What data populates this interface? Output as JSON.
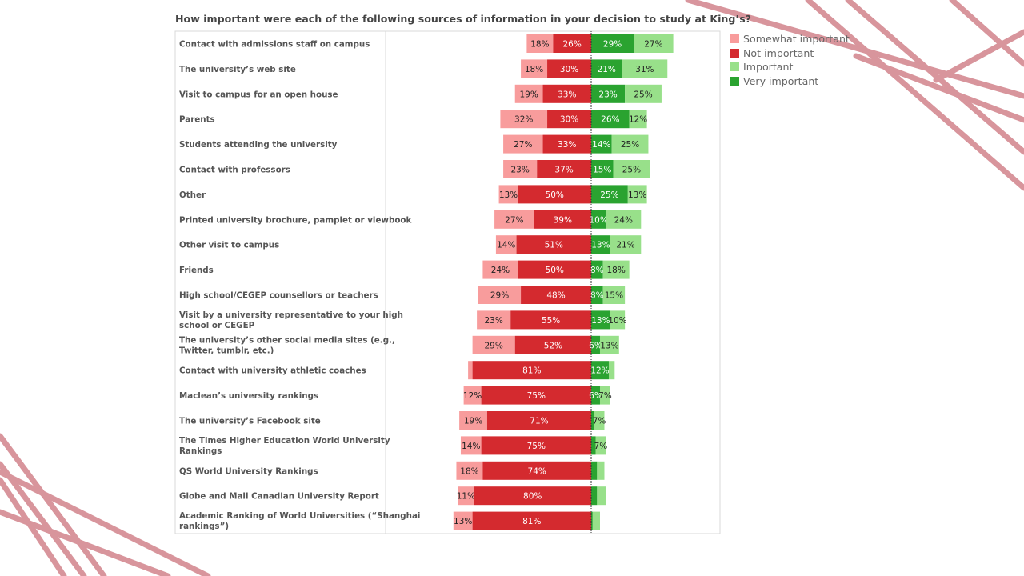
{
  "colors": {
    "somewhat_important": "#f89c9c",
    "not_important": "#d42a2f",
    "important": "#98e08a",
    "very_important": "#2aa330",
    "decor": "#d48a92"
  },
  "chart_data": {
    "type": "bar",
    "orientation": "horizontal-diverging",
    "title": "How important were each of the following sources of information in your decision to study at King’s?",
    "legend_position": "right",
    "series": [
      {
        "name": "Somewhat important",
        "key": "somewhat",
        "side": "negative"
      },
      {
        "name": "Not important",
        "key": "not",
        "side": "negative"
      },
      {
        "name": "Important",
        "key": "imp",
        "side": "positive"
      },
      {
        "name": "Very important",
        "key": "very",
        "side": "positive"
      }
    ],
    "rows": [
      {
        "label": [
          "Contact with admissions staff on campus"
        ],
        "somewhat": 18,
        "not": 26,
        "very": 29,
        "imp": 27
      },
      {
        "label": [
          "The university’s web site"
        ],
        "somewhat": 18,
        "not": 30,
        "very": 21,
        "imp": 31
      },
      {
        "label": [
          "Visit to campus for an open house"
        ],
        "somewhat": 19,
        "not": 33,
        "very": 23,
        "imp": 25
      },
      {
        "label": [
          "Parents"
        ],
        "somewhat": 32,
        "not": 30,
        "very": 26,
        "imp": 12
      },
      {
        "label": [
          "Students attending the university"
        ],
        "somewhat": 27,
        "not": 33,
        "very": 14,
        "imp": 25
      },
      {
        "label": [
          "Contact with professors"
        ],
        "somewhat": 23,
        "not": 37,
        "very": 15,
        "imp": 25
      },
      {
        "label": [
          "Other"
        ],
        "somewhat": 13,
        "not": 50,
        "very": 25,
        "imp": 13
      },
      {
        "label": [
          "Printed university brochure, pamplet or viewbook"
        ],
        "somewhat": 27,
        "not": 39,
        "very": 10,
        "imp": 24
      },
      {
        "label": [
          "Other visit to campus"
        ],
        "somewhat": 14,
        "not": 51,
        "very": 13,
        "imp": 21
      },
      {
        "label": [
          "Friends"
        ],
        "somewhat": 24,
        "not": 50,
        "very": 8,
        "imp": 18
      },
      {
        "label": [
          "High school/CEGEP counsellors or teachers"
        ],
        "somewhat": 29,
        "not": 48,
        "very": 8,
        "imp": 15
      },
      {
        "label": [
          "Visit by a university representative to your high",
          "school or CEGEP"
        ],
        "somewhat": 23,
        "not": 55,
        "very": 13,
        "imp": 10
      },
      {
        "label": [
          "The university’s other social media sites (e.g.,",
          "Twitter, tumblr, etc.)"
        ],
        "somewhat": 29,
        "not": 52,
        "very": 6,
        "imp": 13
      },
      {
        "label": [
          "Contact with university athletic coaches"
        ],
        "somewhat": 3,
        "not": 81,
        "very": 12,
        "imp": 4,
        "show": [
          "not",
          "very"
        ]
      },
      {
        "label": [
          "Maclean’s university rankings"
        ],
        "somewhat": 12,
        "not": 75,
        "very": 6,
        "imp": 7
      },
      {
        "label": [
          "The university’s Facebook site"
        ],
        "somewhat": 19,
        "not": 71,
        "very": 2,
        "imp": 7,
        "show": [
          "somewhat",
          "not",
          "imp"
        ]
      },
      {
        "label": [
          "The Times Higher Education World University",
          "Rankings"
        ],
        "somewhat": 14,
        "not": 75,
        "very": 3,
        "imp": 7,
        "show": [
          "somewhat",
          "not",
          "imp"
        ]
      },
      {
        "label": [
          "QS World University Rankings"
        ],
        "somewhat": 18,
        "not": 74,
        "very": 4,
        "imp": 5,
        "show": [
          "somewhat",
          "not"
        ]
      },
      {
        "label": [
          "Globe and Mail Canadian University Report"
        ],
        "somewhat": 11,
        "not": 80,
        "very": 4,
        "imp": 6,
        "show": [
          "somewhat",
          "not"
        ]
      },
      {
        "label": [
          "Academic Ranking of World Universities (“Shanghai",
          "rankings”)"
        ],
        "somewhat": 13,
        "not": 81,
        "very": 1,
        "imp": 5,
        "show": [
          "somewhat",
          "not"
        ]
      }
    ]
  }
}
